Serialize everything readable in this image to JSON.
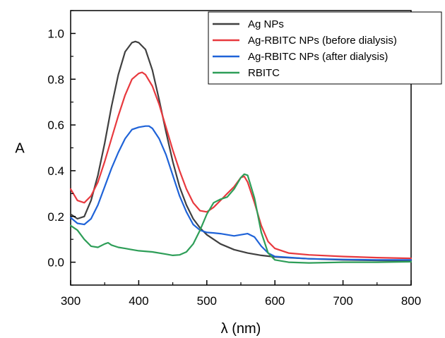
{
  "chart_data": {
    "type": "line",
    "title": "",
    "xlabel": "λ (nm)",
    "ylabel": "A",
    "xlim": [
      300,
      800
    ],
    "ylim": [
      -0.1,
      1.1
    ],
    "xticks": [
      300,
      400,
      500,
      600,
      700,
      800
    ],
    "yticks": [
      0.0,
      0.2,
      0.4,
      0.6,
      0.8,
      1.0
    ],
    "xtick_labels": [
      "300",
      "400",
      "500",
      "600",
      "700",
      "800"
    ],
    "ytick_labels": [
      "0.0",
      "0.2",
      "0.4",
      "0.6",
      "0.8",
      "1.0"
    ],
    "grid": false,
    "legend_position": "top-right",
    "series": [
      {
        "name": "Ag NPs",
        "color": "#404040",
        "x": [
          300,
          310,
          320,
          330,
          340,
          350,
          360,
          370,
          380,
          390,
          395,
          400,
          410,
          420,
          430,
          440,
          450,
          460,
          470,
          480,
          490,
          500,
          520,
          540,
          560,
          580,
          600,
          650,
          700,
          750,
          800
        ],
        "y": [
          0.21,
          0.19,
          0.2,
          0.27,
          0.38,
          0.52,
          0.68,
          0.82,
          0.92,
          0.96,
          0.965,
          0.96,
          0.93,
          0.84,
          0.71,
          0.57,
          0.44,
          0.33,
          0.25,
          0.19,
          0.15,
          0.12,
          0.08,
          0.055,
          0.04,
          0.03,
          0.023,
          0.015,
          0.01,
          0.008,
          0.006
        ]
      },
      {
        "name": "Ag-RBITC NPs (before dialysis)",
        "color": "#e8393e",
        "x": [
          300,
          310,
          320,
          330,
          340,
          350,
          360,
          370,
          380,
          390,
          400,
          405,
          410,
          420,
          430,
          440,
          450,
          460,
          470,
          480,
          490,
          500,
          510,
          520,
          530,
          540,
          550,
          555,
          560,
          570,
          580,
          590,
          600,
          620,
          650,
          700,
          750,
          800
        ],
        "y": [
          0.32,
          0.27,
          0.26,
          0.29,
          0.35,
          0.44,
          0.54,
          0.64,
          0.73,
          0.8,
          0.825,
          0.83,
          0.82,
          0.77,
          0.69,
          0.59,
          0.49,
          0.4,
          0.32,
          0.26,
          0.225,
          0.22,
          0.24,
          0.27,
          0.3,
          0.33,
          0.37,
          0.375,
          0.35,
          0.26,
          0.16,
          0.09,
          0.06,
          0.04,
          0.032,
          0.025,
          0.02,
          0.017
        ]
      },
      {
        "name": "Ag-RBITC NPs (after dialysis)",
        "color": "#1f63d8",
        "x": [
          300,
          310,
          320,
          330,
          340,
          350,
          360,
          370,
          380,
          390,
          400,
          410,
          415,
          420,
          430,
          440,
          450,
          460,
          470,
          480,
          490,
          500,
          510,
          520,
          530,
          540,
          550,
          560,
          570,
          580,
          590,
          600,
          650,
          700,
          750,
          800
        ],
        "y": [
          0.195,
          0.17,
          0.165,
          0.19,
          0.25,
          0.33,
          0.41,
          0.48,
          0.54,
          0.58,
          0.59,
          0.595,
          0.595,
          0.585,
          0.54,
          0.47,
          0.38,
          0.29,
          0.22,
          0.165,
          0.14,
          0.13,
          0.128,
          0.125,
          0.12,
          0.115,
          0.12,
          0.125,
          0.11,
          0.07,
          0.04,
          0.025,
          0.015,
          0.012,
          0.01,
          0.01
        ]
      },
      {
        "name": "RBITC",
        "color": "#2e9e58",
        "x": [
          300,
          310,
          320,
          330,
          340,
          350,
          355,
          360,
          370,
          380,
          390,
          400,
          420,
          440,
          450,
          460,
          470,
          480,
          490,
          500,
          510,
          520,
          530,
          540,
          550,
          555,
          560,
          570,
          580,
          590,
          600,
          620,
          650,
          700,
          750,
          800
        ],
        "y": [
          0.16,
          0.14,
          0.1,
          0.07,
          0.065,
          0.08,
          0.085,
          0.075,
          0.065,
          0.06,
          0.055,
          0.05,
          0.045,
          0.035,
          0.03,
          0.032,
          0.045,
          0.08,
          0.14,
          0.21,
          0.26,
          0.275,
          0.285,
          0.32,
          0.37,
          0.385,
          0.38,
          0.28,
          0.13,
          0.04,
          0.01,
          0.0,
          -0.003,
          0.0,
          0.0,
          0.002
        ]
      }
    ]
  }
}
